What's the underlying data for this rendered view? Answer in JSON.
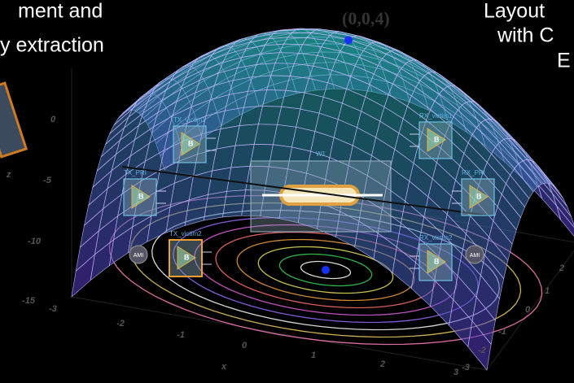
{
  "header": {
    "left_lines": [
      "ment and",
      "y extraction"
    ],
    "right_lines": [
      "Layout",
      "with C",
      "E"
    ]
  },
  "peak_label": "(0,0,4)",
  "axes": {
    "z_label": "z",
    "z_ticks": [
      "0",
      "-5",
      "-10",
      "-15"
    ],
    "x_label": "x",
    "x_ticks": [
      "-3",
      "-2",
      "-1",
      "0",
      "1",
      "2",
      "3"
    ],
    "y_ticks": [
      "2",
      "1",
      "0",
      "-1",
      "-2",
      "-3"
    ]
  },
  "schematic": {
    "wire": "W1",
    "blocks": [
      {
        "label": "TX_victim1",
        "symbol": "B"
      },
      {
        "label": "RX_victim1",
        "symbol": "B"
      },
      {
        "label": "TX_PRI",
        "symbol": "B"
      },
      {
        "label": "RX_PRI",
        "symbol": "B"
      },
      {
        "label": "TX_victim2",
        "symbol": "B"
      },
      {
        "label": "RX_victim2",
        "symbol": "B"
      }
    ],
    "ami": [
      "AMI",
      "AMI"
    ]
  }
}
